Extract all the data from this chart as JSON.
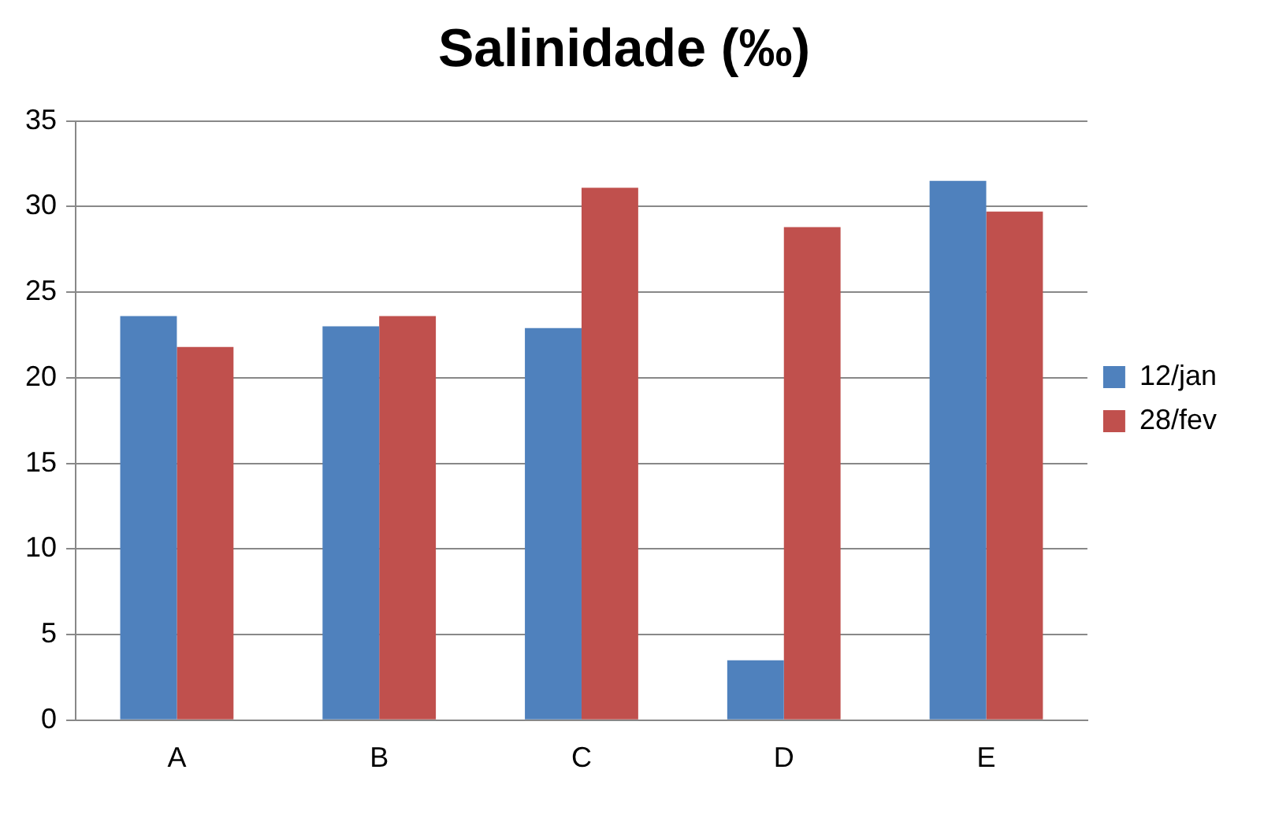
{
  "chart_data": {
    "type": "bar",
    "title": "Salinidade (‰)",
    "categories": [
      "A",
      "B",
      "C",
      "D",
      "E"
    ],
    "series": [
      {
        "name": "12/jan",
        "color": "#4f81bd",
        "values": [
          23.6,
          23.0,
          22.9,
          3.5,
          31.5
        ]
      },
      {
        "name": "28/fev",
        "color": "#c0504d",
        "values": [
          21.8,
          23.6,
          31.1,
          28.8,
          29.7
        ]
      }
    ],
    "ylim": [
      0,
      35
    ],
    "yticks": [
      0,
      5,
      10,
      15,
      20,
      25,
      30,
      35
    ],
    "grid": "y",
    "legend": "right"
  }
}
